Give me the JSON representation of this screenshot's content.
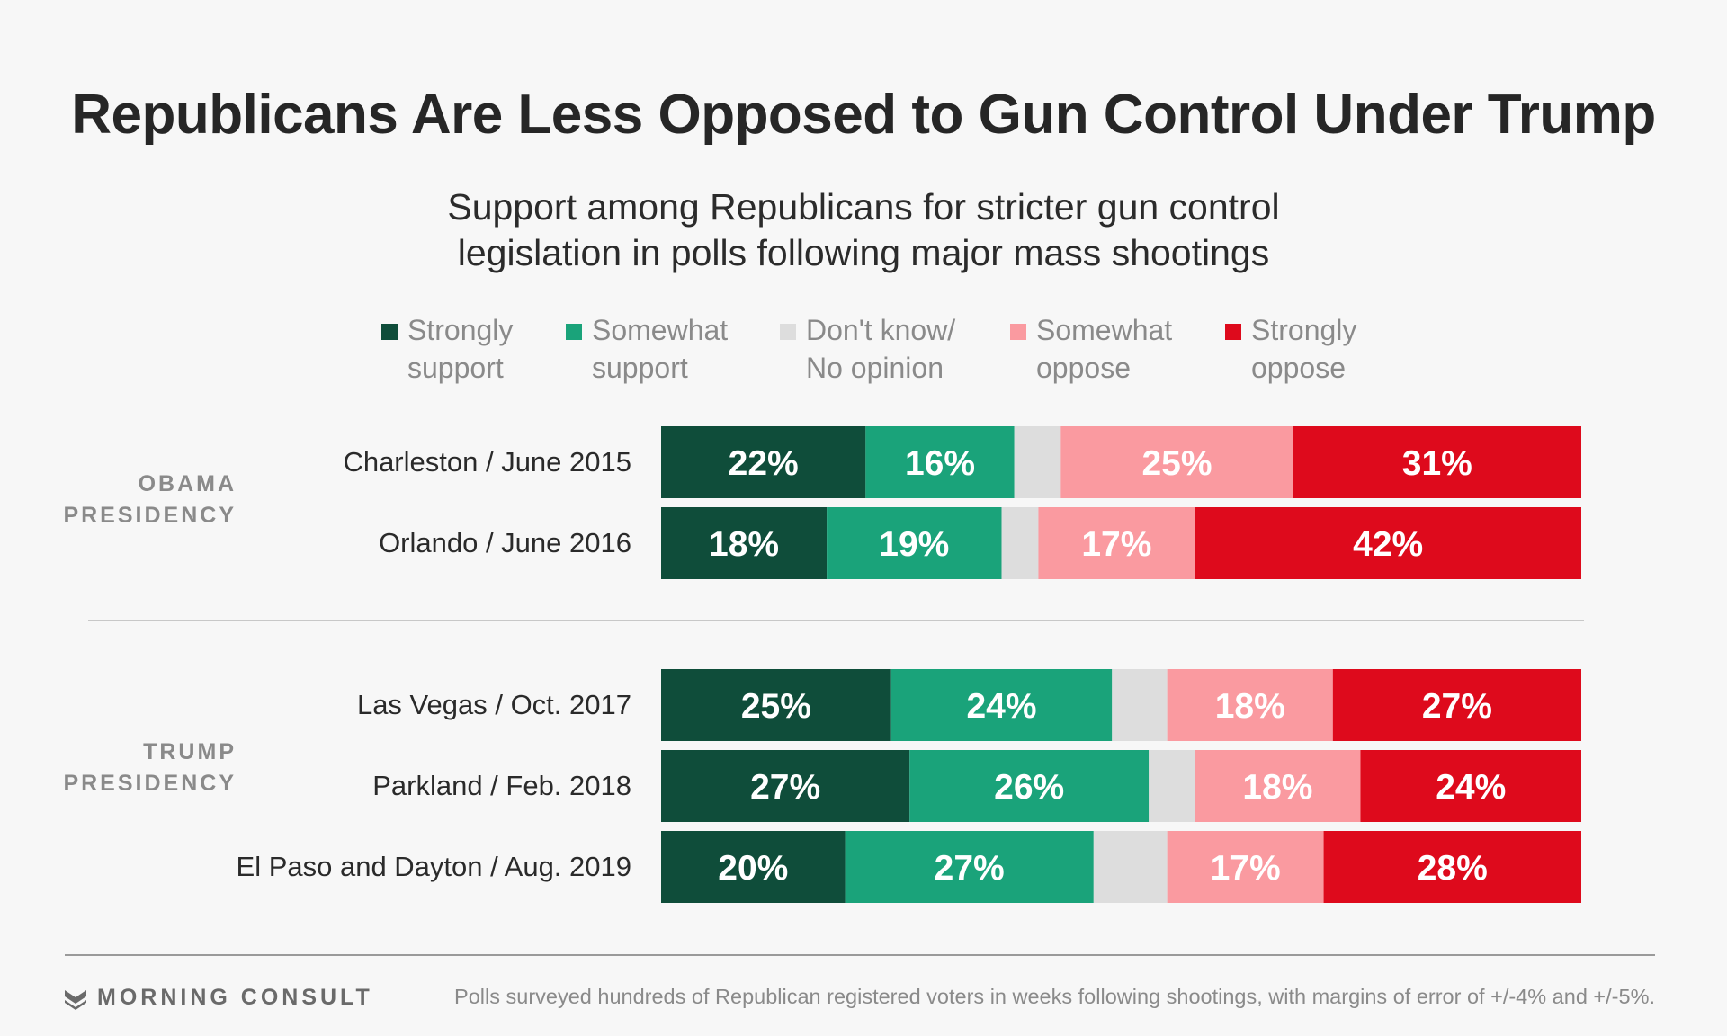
{
  "title": "Republicans Are Less Opposed to Gun Control Under Trump",
  "subtitle": {
    "line1": "Support among Republicans for stricter gun control",
    "line2": "legislation in polls following major mass shootings"
  },
  "legend": [
    {
      "line1": "Strongly",
      "line2": "support",
      "color": "#0f4d3a"
    },
    {
      "line1": "Somewhat",
      "line2": "support",
      "color": "#1aa37a"
    },
    {
      "line1": "Don't know/",
      "line2": "No opinion",
      "color": "#dddddd"
    },
    {
      "line1": "Somewhat",
      "line2": "oppose",
      "color": "#fa9aa0"
    },
    {
      "line1": "Strongly",
      "line2": "oppose",
      "color": "#de0a1c"
    }
  ],
  "groups": [
    {
      "line1": "OBAMA",
      "line2": "PRESIDENCY"
    },
    {
      "line1": "TRUMP",
      "line2": "PRESIDENCY"
    }
  ],
  "chart_data": {
    "type": "bar",
    "orientation": "horizontal",
    "stacked": true,
    "title": "Republicans Are Less Opposed to Gun Control Under Trump",
    "subtitle": "Support among Republicans for stricter gun control legislation in polls following major mass shootings",
    "categories": [
      "Charleston / June 2015",
      "Orlando / June 2016",
      "Las Vegas / Oct. 2017",
      "Parkland / Feb. 2018",
      "El Paso and Dayton / Aug. 2019"
    ],
    "category_groups": [
      "OBAMA PRESIDENCY",
      "OBAMA PRESIDENCY",
      "TRUMP PRESIDENCY",
      "TRUMP PRESIDENCY",
      "TRUMP PRESIDENCY"
    ],
    "series": [
      {
        "name": "Strongly support",
        "color": "#0f4d3a",
        "values": [
          22,
          18,
          25,
          27,
          20
        ],
        "labels": [
          "22%",
          "18%",
          "25%",
          "27%",
          "20%"
        ]
      },
      {
        "name": "Somewhat support",
        "color": "#1aa37a",
        "values": [
          16,
          19,
          24,
          26,
          27
        ],
        "labels": [
          "16%",
          "19%",
          "24%",
          "26%",
          "27%"
        ]
      },
      {
        "name": "Don't know/No opinion",
        "color": "#dddddd",
        "values": [
          5,
          4,
          6,
          5,
          8
        ],
        "labels": [
          "",
          "",
          "",
          "",
          ""
        ]
      },
      {
        "name": "Somewhat oppose",
        "color": "#fa9aa0",
        "values": [
          25,
          17,
          18,
          18,
          17
        ],
        "labels": [
          "25%",
          "17%",
          "18%",
          "18%",
          "17%"
        ]
      },
      {
        "name": "Strongly oppose",
        "color": "#de0a1c",
        "values": [
          31,
          42,
          27,
          24,
          28
        ],
        "labels": [
          "31%",
          "42%",
          "27%",
          "24%",
          "28%"
        ]
      }
    ],
    "xlim": [
      0,
      100
    ],
    "legend_position": "top",
    "grid": false
  },
  "footer": {
    "brand": "MORNING CONSULT",
    "note": "Polls surveyed hundreds of Republican registered voters in weeks following shootings, with margins of error of +/-4% and +/-5%."
  }
}
